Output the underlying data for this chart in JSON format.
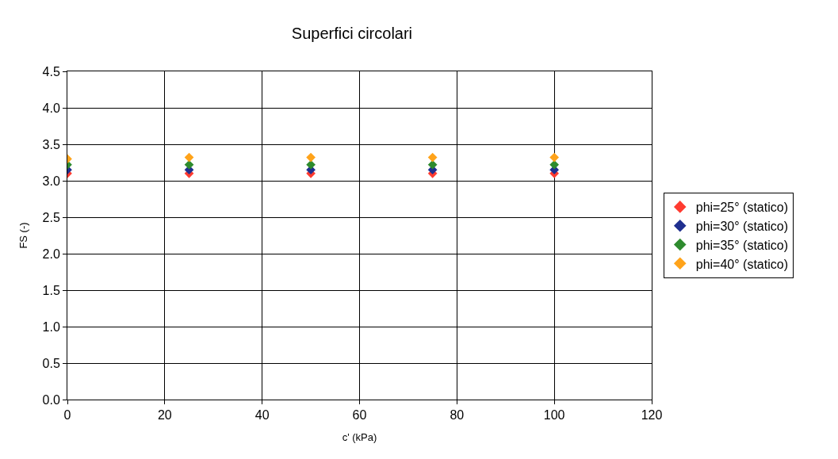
{
  "chart_data": {
    "type": "scatter",
    "title": "Superfici circolari",
    "xlabel": "c' (kPa)",
    "ylabel": "FS (-)",
    "x": [
      0,
      25,
      50,
      75,
      100
    ],
    "series": [
      {
        "name": "phi=25° (statico)",
        "color": "#ff3b30",
        "values": [
          3.1,
          3.1,
          3.1,
          3.1,
          3.1
        ]
      },
      {
        "name": "phi=30° (statico)",
        "color": "#1f2f8f",
        "values": [
          3.15,
          3.15,
          3.15,
          3.15,
          3.15
        ]
      },
      {
        "name": "phi=35° (statico)",
        "color": "#2e8b2e",
        "values": [
          3.22,
          3.22,
          3.22,
          3.22,
          3.22
        ]
      },
      {
        "name": "phi=40° (statico)",
        "color": "#ffa31a",
        "values": [
          3.3,
          3.32,
          3.32,
          3.32,
          3.32
        ]
      }
    ],
    "xlim": [
      0,
      120
    ],
    "xticks": [
      0,
      20,
      40,
      60,
      80,
      100,
      120
    ],
    "ylim": [
      0,
      4.5
    ],
    "yticks": [
      {
        "value": 0,
        "label": "0.0"
      },
      {
        "value": 0.5,
        "label": "0.5"
      },
      {
        "value": 1,
        "label": "1.0"
      },
      {
        "value": 1.5,
        "label": "1.5"
      },
      {
        "value": 2,
        "label": "2.0"
      },
      {
        "value": 2.5,
        "label": "2.5"
      },
      {
        "value": 3,
        "label": "3.0"
      },
      {
        "value": 3.5,
        "label": "3.5"
      },
      {
        "value": 4,
        "label": "4.0"
      },
      {
        "value": 4.5,
        "label": "4.5"
      }
    ],
    "grid": true,
    "legend": "right",
    "marker": "diamond"
  }
}
